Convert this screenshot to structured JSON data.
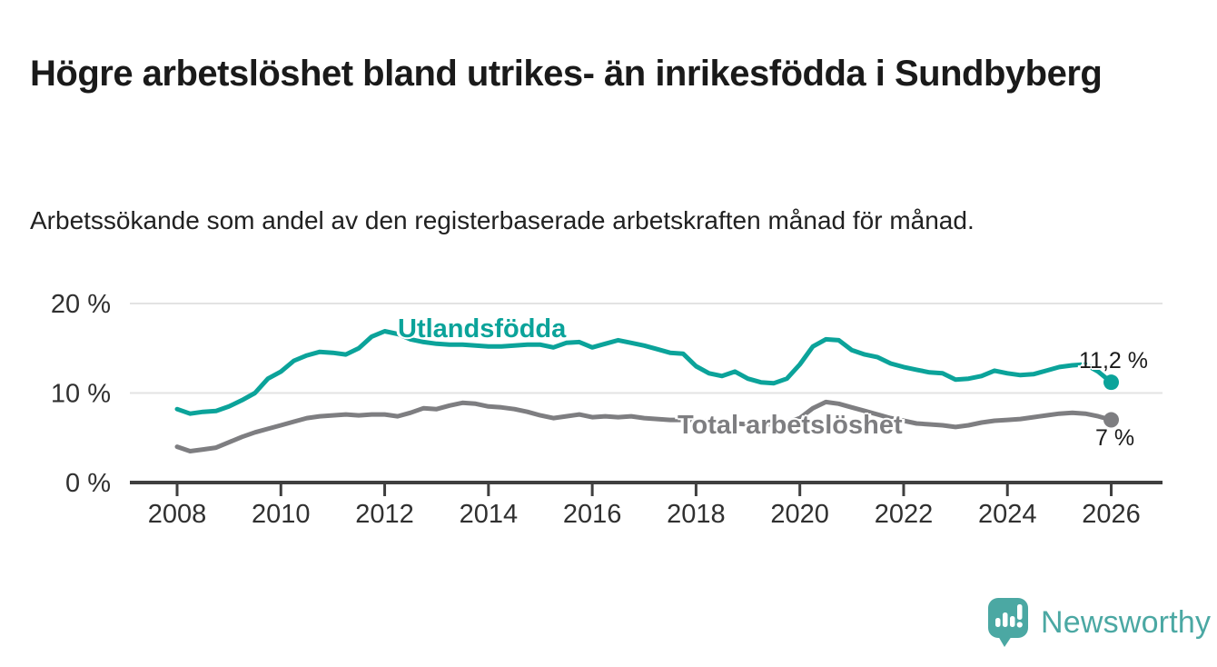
{
  "header": {
    "title": "Högre arbetslöshet bland utrikes- än inrikesfödda i Sundbyberg",
    "subtitle": "Arbetssökande som andel av den registerbaserade arbetskraften månad för månad."
  },
  "chart_data": {
    "type": "line",
    "unit": "%",
    "grid": "horizontal",
    "legend": "inline-labels",
    "xlim": [
      2007.1,
      2027.0
    ],
    "ylim": [
      0,
      21.5
    ],
    "x_ticks": [
      2008,
      2010,
      2012,
      2014,
      2016,
      2018,
      2020,
      2022,
      2024,
      2026
    ],
    "y_ticks": [
      {
        "value": 0,
        "label": "0 %"
      },
      {
        "value": 10,
        "label": "10 %"
      },
      {
        "value": 20,
        "label": "20 %"
      }
    ],
    "x": [
      2008.0,
      2008.25,
      2008.5,
      2008.75,
      2009.0,
      2009.25,
      2009.5,
      2009.75,
      2010.0,
      2010.25,
      2010.5,
      2010.75,
      2011.0,
      2011.25,
      2011.5,
      2011.75,
      2012.0,
      2012.25,
      2012.5,
      2012.75,
      2013.0,
      2013.25,
      2013.5,
      2013.75,
      2014.0,
      2014.25,
      2014.5,
      2014.75,
      2015.0,
      2015.25,
      2015.5,
      2015.75,
      2016.0,
      2016.25,
      2016.5,
      2016.75,
      2017.0,
      2017.25,
      2017.5,
      2017.75,
      2018.0,
      2018.25,
      2018.5,
      2018.75,
      2019.0,
      2019.25,
      2019.5,
      2019.75,
      2020.0,
      2020.25,
      2020.5,
      2020.75,
      2021.0,
      2021.25,
      2021.5,
      2021.75,
      2022.0,
      2022.25,
      2022.5,
      2022.75,
      2023.0,
      2023.25,
      2023.5,
      2023.75,
      2024.0,
      2024.25,
      2024.5,
      2024.75,
      2025.0,
      2025.25,
      2025.5,
      2025.75,
      2026.0
    ],
    "series": [
      {
        "name": "Utlandsfödda",
        "color": "#0ba39a",
        "end_label": "11,2 %",
        "end_value": 11.2,
        "values": [
          8.2,
          7.7,
          7.9,
          8.0,
          8.5,
          9.2,
          10.0,
          11.6,
          12.4,
          13.6,
          14.2,
          14.6,
          14.5,
          14.3,
          15.0,
          16.3,
          16.9,
          16.6,
          16.0,
          15.7,
          15.5,
          15.4,
          15.4,
          15.3,
          15.2,
          15.2,
          15.3,
          15.4,
          15.4,
          15.1,
          15.6,
          15.7,
          15.1,
          15.5,
          15.9,
          15.6,
          15.3,
          14.9,
          14.5,
          14.4,
          13.0,
          12.2,
          11.9,
          12.4,
          11.6,
          11.2,
          11.1,
          11.6,
          13.2,
          15.2,
          16.0,
          15.9,
          14.8,
          14.3,
          14.0,
          13.3,
          12.9,
          12.6,
          12.3,
          12.2,
          11.5,
          11.6,
          11.9,
          12.5,
          12.2,
          12.0,
          12.1,
          12.5,
          12.9,
          13.1,
          13.2,
          12.4,
          11.2
        ]
      },
      {
        "name": "Total arbetslöshet",
        "color": "#7e7e81",
        "end_label": "7 %",
        "end_value": 7.0,
        "values": [
          4.0,
          3.5,
          3.7,
          3.9,
          4.5,
          5.1,
          5.6,
          6.0,
          6.4,
          6.8,
          7.2,
          7.4,
          7.5,
          7.6,
          7.5,
          7.6,
          7.6,
          7.4,
          7.8,
          8.3,
          8.2,
          8.6,
          8.9,
          8.8,
          8.5,
          8.4,
          8.2,
          7.9,
          7.5,
          7.2,
          7.4,
          7.6,
          7.3,
          7.4,
          7.3,
          7.4,
          7.2,
          7.1,
          7.0,
          7.0,
          6.9,
          6.8,
          6.7,
          6.6,
          6.5,
          6.5,
          6.5,
          6.7,
          7.2,
          8.3,
          9.0,
          8.8,
          8.4,
          8.0,
          7.6,
          7.2,
          6.9,
          6.6,
          6.5,
          6.4,
          6.2,
          6.4,
          6.7,
          6.9,
          7.0,
          7.1,
          7.3,
          7.5,
          7.7,
          7.8,
          7.7,
          7.4,
          7.0
        ]
      }
    ]
  },
  "footer": {
    "brand": "Newsworthy"
  },
  "colors": {
    "series_foreign_born": "#0ba39a",
    "series_total": "#7e7e81",
    "title_text": "#1a1a1a",
    "axis_text": "#303030",
    "axis_line": "#3f3f3f",
    "gridline": "#e3e3e3",
    "brand_teal": "#4ba8a3",
    "background": "#ffffff"
  }
}
